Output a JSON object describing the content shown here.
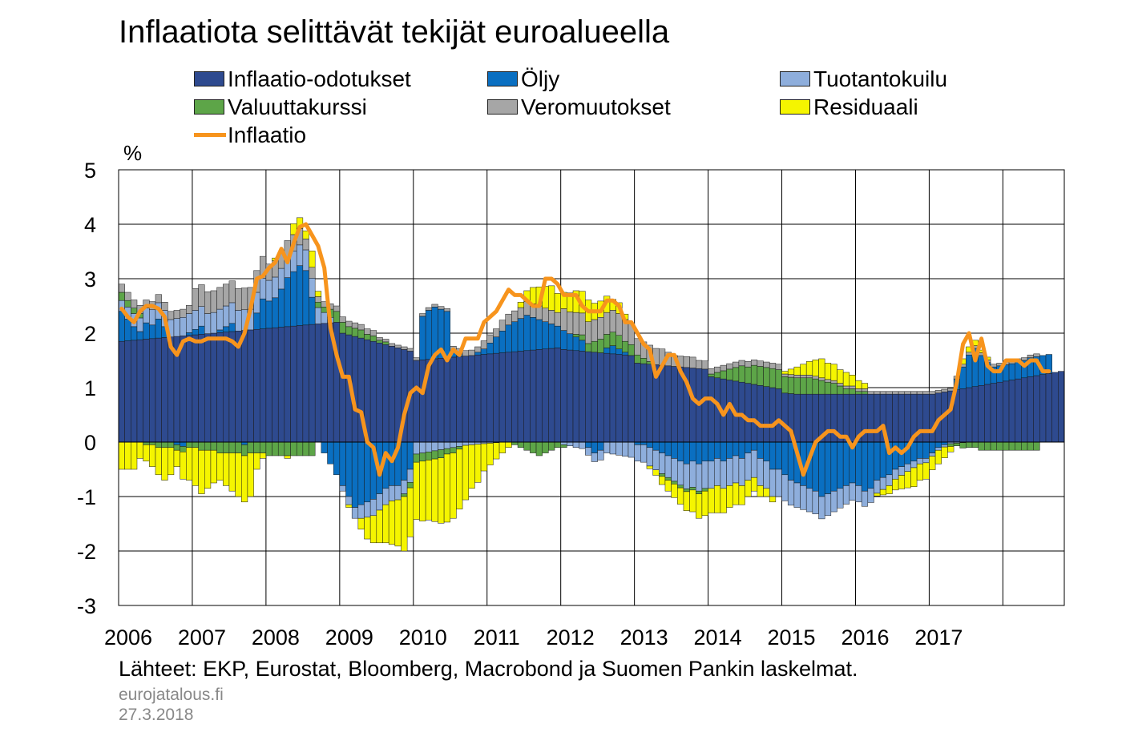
{
  "title": "Inflaatiota selittävät tekijät euroalueella",
  "unit": "%",
  "source": "Lähteet: EKP, Eurostat, Bloomberg, Macrobond ja Suomen Pankin laskelmat.",
  "site": "eurojatalous.fi",
  "date": "27.3.2018",
  "legend": [
    {
      "label": "Inflaatio-odotukset",
      "color": "#2e4a8f",
      "kind": "bar"
    },
    {
      "label": "Öljy",
      "color": "#0a6fc1",
      "kind": "bar"
    },
    {
      "label": "Tuotantokuilu",
      "color": "#8eaedc",
      "kind": "bar"
    },
    {
      "label": "Valuuttakurssi",
      "color": "#5da548",
      "kind": "bar"
    },
    {
      "label": "Veromuutokset",
      "color": "#a6a6a6",
      "kind": "bar"
    },
    {
      "label": "Residuaali",
      "color": "#f5f500",
      "kind": "bar"
    },
    {
      "label": "Inflaatio",
      "color": "#f7941d",
      "kind": "line"
    }
  ],
  "chart_data": {
    "type": "bar",
    "stacked": true,
    "x_start": "2006-01",
    "frequency": "monthly",
    "ylim": [
      -3,
      5
    ],
    "yticks": [
      -3,
      -2,
      -1,
      0,
      1,
      2,
      3,
      4,
      5
    ],
    "xticks": [
      "2006",
      "2007",
      "2008",
      "2009",
      "2010",
      "2011",
      "2012",
      "2013",
      "2014",
      "2015",
      "2016",
      "2017"
    ],
    "grid": true,
    "legend_position": "top",
    "series": [
      {
        "name": "Inflaatio-odotukset",
        "color": "#2e4a8f",
        "values": [
          1.85,
          1.86,
          1.87,
          1.88,
          1.89,
          1.9,
          1.91,
          1.92,
          1.93,
          1.94,
          1.95,
          1.96,
          1.97,
          1.98,
          1.99,
          2.0,
          2.01,
          2.02,
          2.03,
          2.04,
          2.05,
          2.06,
          2.07,
          2.08,
          2.09,
          2.1,
          2.11,
          2.12,
          2.13,
          2.14,
          2.15,
          2.16,
          2.17,
          2.18,
          2.19,
          2.2,
          2.0,
          1.97,
          1.94,
          1.91,
          1.88,
          1.85,
          1.82,
          1.79,
          1.76,
          1.73,
          1.7,
          1.67,
          1.5,
          1.51,
          1.52,
          1.53,
          1.54,
          1.55,
          1.56,
          1.57,
          1.58,
          1.59,
          1.6,
          1.61,
          1.62,
          1.63,
          1.64,
          1.65,
          1.66,
          1.67,
          1.68,
          1.69,
          1.7,
          1.71,
          1.72,
          1.73,
          1.7,
          1.69,
          1.68,
          1.67,
          1.66,
          1.65,
          1.64,
          1.63,
          1.62,
          1.61,
          1.6,
          1.59,
          1.45,
          1.44,
          1.43,
          1.42,
          1.41,
          1.4,
          1.39,
          1.38,
          1.37,
          1.36,
          1.35,
          1.34,
          1.2,
          1.18,
          1.16,
          1.14,
          1.12,
          1.1,
          1.08,
          1.06,
          1.04,
          1.02,
          1.0,
          0.98,
          0.9,
          0.89,
          0.88,
          0.88,
          0.88,
          0.88,
          0.88,
          0.88,
          0.88,
          0.88,
          0.88,
          0.88,
          0.88,
          0.88,
          0.88,
          0.88,
          0.88,
          0.88,
          0.88,
          0.88,
          0.88,
          0.88,
          0.88,
          0.88,
          0.88,
          0.9,
          0.92,
          0.94,
          0.96,
          0.98,
          1.0,
          1.02,
          1.04,
          1.06,
          1.08,
          1.1,
          1.12,
          1.14,
          1.16,
          1.18,
          1.2,
          1.22,
          1.24,
          1.26,
          1.28,
          1.3
        ]
      },
      {
        "name": "Öljy",
        "color": "#0a6fc1",
        "values": [
          0.55,
          0.4,
          0.25,
          0.15,
          0.3,
          0.25,
          0.35,
          0.2,
          0.0,
          -0.05,
          -0.08,
          0.05,
          0.1,
          0.15,
          0.0,
          0.0,
          0.05,
          0.1,
          0.15,
          0.0,
          -0.05,
          0.0,
          0.3,
          0.55,
          0.5,
          0.55,
          0.7,
          0.9,
          1.0,
          1.1,
          1.0,
          0.5,
          0.0,
          -0.2,
          -0.4,
          -0.6,
          -0.8,
          -1.0,
          -1.2,
          -1.15,
          -1.1,
          -1.05,
          -0.95,
          -0.85,
          -0.8,
          -0.8,
          -0.7,
          -0.5,
          0.0,
          0.8,
          0.9,
          0.95,
          0.9,
          0.85,
          0.1,
          0.05,
          0.0,
          0.0,
          0.05,
          0.1,
          0.2,
          0.3,
          0.4,
          0.5,
          0.55,
          0.6,
          0.65,
          0.6,
          0.55,
          0.5,
          0.45,
          0.4,
          0.35,
          0.3,
          0.25,
          0.2,
          -0.1,
          -0.2,
          -0.15,
          0.1,
          0.15,
          0.1,
          0.05,
          0.0,
          -0.05,
          -0.05,
          -0.1,
          -0.15,
          -0.2,
          -0.25,
          -0.3,
          -0.35,
          -0.4,
          -0.35,
          -0.4,
          -0.35,
          -0.35,
          -0.3,
          -0.35,
          -0.3,
          -0.25,
          -0.3,
          -0.2,
          -0.15,
          -0.3,
          -0.35,
          -0.5,
          -0.5,
          -0.6,
          -0.7,
          -0.75,
          -0.8,
          -0.85,
          -0.9,
          -1.0,
          -0.95,
          -0.9,
          -0.85,
          -0.8,
          -0.75,
          -0.8,
          -0.9,
          -0.85,
          -0.7,
          -0.65,
          -0.6,
          -0.5,
          -0.45,
          -0.4,
          -0.35,
          -0.3,
          -0.3,
          -0.2,
          -0.1,
          -0.05,
          0.0,
          0.2,
          0.4,
          0.6,
          0.7,
          0.55,
          0.4,
          0.3,
          0.3,
          0.3,
          0.3,
          0.32,
          0.32,
          0.35,
          0.35,
          0.35,
          0.35
        ]
      },
      {
        "name": "Tuotantokuilu",
        "color": "#8eaedc",
        "values": [
          0.2,
          0.22,
          0.24,
          0.25,
          0.27,
          0.28,
          0.3,
          0.3,
          0.32,
          0.33,
          0.34,
          0.35,
          0.35,
          0.36,
          0.37,
          0.38,
          0.38,
          0.38,
          0.38,
          0.38,
          0.38,
          0.38,
          0.38,
          0.38,
          0.38,
          0.38,
          0.38,
          0.38,
          0.38,
          0.38,
          0.38,
          0.35,
          0.3,
          0.2,
          0.1,
          0.0,
          -0.1,
          -0.15,
          -0.2,
          -0.25,
          -0.28,
          -0.3,
          -0.3,
          -0.3,
          -0.28,
          -0.26,
          -0.25,
          -0.24,
          -0.22,
          -0.2,
          -0.18,
          -0.16,
          -0.14,
          -0.12,
          -0.1,
          -0.08,
          -0.06,
          -0.05,
          -0.04,
          -0.03,
          -0.02,
          -0.01,
          0.0,
          0.0,
          0.0,
          0.0,
          0.0,
          0.0,
          0.0,
          0.0,
          0.0,
          0.0,
          -0.05,
          -0.07,
          -0.1,
          -0.12,
          -0.14,
          -0.16,
          -0.18,
          -0.2,
          -0.22,
          -0.24,
          -0.26,
          -0.28,
          -0.3,
          -0.32,
          -0.34,
          -0.36,
          -0.38,
          -0.4,
          -0.42,
          -0.44,
          -0.46,
          -0.48,
          -0.5,
          -0.5,
          -0.5,
          -0.5,
          -0.5,
          -0.5,
          -0.5,
          -0.5,
          -0.5,
          -0.5,
          -0.5,
          -0.5,
          -0.5,
          -0.5,
          -0.48,
          -0.46,
          -0.45,
          -0.44,
          -0.43,
          -0.42,
          -0.41,
          -0.4,
          -0.38,
          -0.36,
          -0.34,
          -0.32,
          -0.3,
          -0.28,
          -0.26,
          -0.24,
          -0.22,
          -0.2,
          -0.18,
          -0.16,
          -0.14,
          -0.12,
          -0.1,
          -0.08,
          -0.06,
          -0.05,
          -0.04,
          -0.03,
          -0.02,
          -0.01,
          0.0,
          0.0,
          0.0,
          0.0,
          0.0,
          0.0,
          0.0,
          0.0,
          0.0,
          0.0,
          0.0,
          0.0,
          0.0,
          0.0,
          0.0,
          0.0
        ]
      },
      {
        "name": "Valuuttakurssi",
        "color": "#5da548",
        "values": [
          0.15,
          0.12,
          0.1,
          0.08,
          -0.05,
          -0.05,
          -0.1,
          -0.1,
          -0.1,
          -0.1,
          -0.1,
          -0.1,
          -0.1,
          -0.15,
          -0.15,
          -0.15,
          -0.2,
          -0.2,
          -0.2,
          -0.2,
          -0.2,
          -0.2,
          -0.2,
          -0.2,
          -0.25,
          -0.25,
          -0.25,
          -0.25,
          -0.25,
          -0.25,
          -0.25,
          -0.25,
          0.1,
          0.1,
          0.15,
          0.2,
          0.2,
          0.15,
          0.15,
          0.15,
          0.1,
          0.1,
          0.05,
          0.05,
          0.0,
          0.0,
          -0.05,
          -0.1,
          -0.15,
          -0.15,
          -0.15,
          -0.15,
          -0.15,
          -0.1,
          -0.1,
          -0.05,
          0.0,
          0.0,
          0.0,
          0.0,
          0.0,
          0.0,
          0.0,
          0.0,
          -0.05,
          -0.1,
          -0.15,
          -0.2,
          -0.25,
          -0.2,
          -0.15,
          -0.1,
          -0.05,
          0.0,
          0.05,
          0.1,
          0.15,
          0.2,
          0.25,
          0.25,
          0.25,
          0.25,
          0.2,
          0.2,
          0.15,
          0.1,
          0.05,
          0.0,
          -0.05,
          -0.05,
          -0.05,
          -0.05,
          -0.05,
          -0.05,
          -0.05,
          -0.05,
          0.05,
          0.1,
          0.15,
          0.2,
          0.25,
          0.3,
          0.3,
          0.35,
          0.35,
          0.35,
          0.35,
          0.35,
          0.3,
          0.3,
          0.3,
          0.3,
          0.3,
          0.28,
          0.25,
          0.22,
          0.2,
          0.15,
          0.1,
          0.1,
          0.05,
          0.05,
          0.0,
          0.0,
          0.0,
          0.0,
          0.0,
          0.0,
          0.0,
          0.0,
          0.0,
          0.0,
          0.0,
          0.0,
          0.0,
          -0.05,
          -0.05,
          -0.1,
          -0.1,
          -0.1,
          -0.15,
          -0.15,
          -0.15,
          -0.15,
          -0.15,
          -0.15,
          -0.15,
          -0.15,
          -0.15,
          -0.15
        ]
      },
      {
        "name": "Veromuutokset",
        "color": "#a6a6a6",
        "values": [
          0.15,
          0.15,
          0.15,
          0.15,
          0.15,
          0.15,
          0.15,
          0.15,
          0.15,
          0.15,
          0.15,
          0.15,
          0.4,
          0.4,
          0.4,
          0.4,
          0.4,
          0.4,
          0.4,
          0.4,
          0.4,
          0.4,
          0.4,
          0.4,
          0.3,
          0.3,
          0.3,
          0.3,
          0.3,
          0.3,
          0.2,
          0.2,
          0.1,
          0.1,
          0.1,
          0.1,
          0.1,
          0.1,
          0.1,
          0.1,
          0.1,
          0.1,
          0.05,
          0.05,
          0.05,
          0.05,
          0.05,
          0.05,
          0.05,
          0.05,
          0.05,
          0.05,
          0.05,
          0.05,
          0.1,
          0.1,
          0.1,
          0.1,
          0.1,
          0.15,
          0.15,
          0.15,
          0.2,
          0.2,
          0.2,
          0.2,
          0.25,
          0.25,
          0.25,
          0.25,
          0.25,
          0.25,
          0.4,
          0.4,
          0.4,
          0.4,
          0.4,
          0.4,
          0.4,
          0.4,
          0.4,
          0.4,
          0.4,
          0.4,
          0.3,
          0.3,
          0.3,
          0.3,
          0.3,
          0.25,
          0.2,
          0.2,
          0.2,
          0.2,
          0.15,
          0.15,
          0.1,
          0.1,
          0.1,
          0.1,
          0.1,
          0.1,
          0.1,
          0.1,
          0.1,
          0.1,
          0.1,
          0.1,
          0.05,
          0.05,
          0.05,
          0.05,
          0.05,
          0.05,
          0.05,
          0.05,
          0.05,
          0.05,
          0.05,
          0.05,
          0.05,
          0.05,
          0.05,
          0.05,
          0.05,
          0.05,
          0.05,
          0.05,
          0.05,
          0.05,
          0.05,
          0.05,
          0.05,
          0.05,
          0.05,
          0.05,
          0.05,
          0.05,
          0.05,
          0.05,
          0.05,
          0.05,
          0.05,
          0.05,
          0.05,
          0.05,
          0.05,
          0.05,
          0.05,
          0.05
        ]
      },
      {
        "name": "Residuaali",
        "color": "#f5f500",
        "values": [
          -0.5,
          -0.5,
          -0.5,
          -0.3,
          -0.3,
          -0.4,
          -0.5,
          -0.6,
          -0.5,
          -0.3,
          -0.5,
          -0.6,
          -0.7,
          -0.8,
          -0.7,
          -0.6,
          -0.5,
          -0.6,
          -0.7,
          -0.8,
          -0.85,
          -0.8,
          -0.3,
          -0.1,
          0.0,
          0.05,
          0.0,
          -0.05,
          0.2,
          0.2,
          0.15,
          0.3,
          0.1,
          0.0,
          0.0,
          0.0,
          0.0,
          -0.05,
          0.0,
          -0.2,
          -0.4,
          -0.5,
          -0.6,
          -0.7,
          -0.8,
          -0.85,
          -1.0,
          -0.9,
          -1.05,
          -1.1,
          -1.1,
          -1.15,
          -1.2,
          -1.25,
          -1.2,
          -1.1,
          -1.0,
          -0.8,
          -0.7,
          -0.5,
          -0.4,
          -0.3,
          -0.2,
          -0.1,
          0.0,
          0.1,
          0.2,
          0.3,
          0.35,
          0.4,
          0.45,
          0.35,
          0.3,
          0.35,
          0.4,
          0.4,
          0.4,
          0.3,
          0.3,
          0.3,
          0.2,
          0.2,
          0.1,
          0.0,
          0.0,
          0.0,
          -0.05,
          -0.1,
          -0.15,
          -0.2,
          -0.25,
          -0.3,
          -0.35,
          -0.4,
          -0.45,
          -0.45,
          -0.45,
          -0.5,
          -0.45,
          -0.4,
          -0.4,
          -0.35,
          -0.3,
          -0.25,
          -0.2,
          -0.15,
          -0.1,
          0.0,
          0.05,
          0.1,
          0.15,
          0.2,
          0.25,
          0.3,
          0.35,
          0.3,
          0.3,
          0.25,
          0.25,
          0.2,
          0.15,
          0.1,
          0.0,
          -0.05,
          -0.1,
          -0.15,
          -0.2,
          -0.25,
          -0.3,
          -0.35,
          -0.3,
          -0.3,
          -0.25,
          -0.25,
          -0.2,
          -0.1,
          0.0,
          0.1,
          0.1,
          0.1,
          0.05,
          0.05,
          0.0,
          0.0,
          0.0,
          0.0,
          0.0,
          0.0,
          0.0,
          0.0,
          0.0,
          0.0
        ]
      }
    ],
    "line": {
      "name": "Inflaatio",
      "color": "#f7941d",
      "values": [
        2.45,
        2.3,
        2.2,
        2.4,
        2.5,
        2.5,
        2.45,
        2.3,
        1.75,
        1.6,
        1.85,
        1.9,
        1.85,
        1.85,
        1.9,
        1.9,
        1.9,
        1.9,
        1.85,
        1.75,
        2.0,
        2.45,
        3.0,
        3.05,
        3.2,
        3.3,
        3.55,
        3.3,
        3.65,
        3.95,
        4.0,
        3.8,
        3.6,
        3.2,
        2.1,
        1.6,
        1.2,
        1.2,
        0.6,
        0.55,
        0.0,
        -0.1,
        -0.6,
        -0.2,
        -0.35,
        -0.1,
        0.5,
        0.9,
        1.0,
        0.9,
        1.4,
        1.6,
        1.7,
        1.5,
        1.7,
        1.6,
        1.9,
        1.9,
        1.9,
        2.2,
        2.3,
        2.4,
        2.6,
        2.8,
        2.7,
        2.7,
        2.6,
        2.5,
        2.5,
        3.0,
        3.0,
        2.9,
        2.7,
        2.7,
        2.7,
        2.5,
        2.4,
        2.4,
        2.4,
        2.6,
        2.6,
        2.5,
        2.2,
        2.2,
        2.0,
        1.8,
        1.7,
        1.2,
        1.4,
        1.6,
        1.6,
        1.3,
        1.1,
        0.8,
        0.7,
        0.8,
        0.8,
        0.7,
        0.5,
        0.7,
        0.5,
        0.5,
        0.4,
        0.4,
        0.3,
        0.3,
        0.3,
        0.4,
        0.3,
        0.2,
        -0.2,
        -0.6,
        -0.3,
        0.0,
        0.1,
        0.2,
        0.2,
        0.1,
        0.1,
        -0.1,
        0.1,
        0.2,
        0.2,
        0.2,
        0.3,
        -0.2,
        -0.1,
        -0.2,
        -0.1,
        0.1,
        0.2,
        0.2,
        0.2,
        0.4,
        0.5,
        0.6,
        1.1,
        1.8,
        2.0,
        1.5,
        1.9,
        1.4,
        1.3,
        1.3,
        1.5,
        1.5,
        1.5,
        1.4,
        1.5,
        1.5,
        1.3,
        1.3
      ]
    }
  }
}
